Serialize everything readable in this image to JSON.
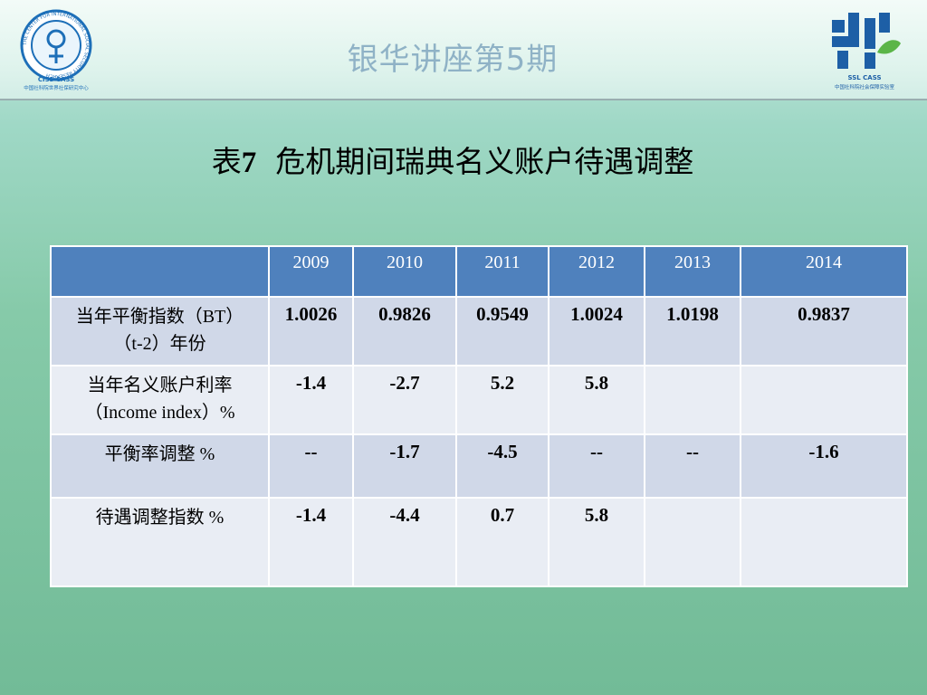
{
  "header": {
    "series_title": "银华讲座第5期",
    "left_logo": {
      "icon": "ciss-cass-emblem-icon",
      "ring_text": "THE CENTER FOR INTERNATIONAL SOCIAL SECURITY RESEARCH",
      "abbr": "CISS   CASS",
      "subtitle": "中国社科院世界社保研究中心"
    },
    "right_logo": {
      "icon": "ssl-cass-emblem-icon",
      "abbr": "SSL   CASS",
      "subtitle": "中国社科院社会保障实验室"
    }
  },
  "slide": {
    "title_prefix": "表",
    "title_number": "7",
    "title_text": "危机期间瑞典名义账户待遇调整"
  },
  "table": {
    "columns": [
      "",
      "2009",
      "2010",
      "2011",
      "2012",
      "2013",
      "2014"
    ],
    "rows": [
      {
        "label_line1": "当年平衡指数（BT）",
        "label_line2": "（t-2）年份",
        "values": [
          "1.0026",
          "0.9826",
          "0.9549",
          "1.0024",
          "1.0198",
          "0.9837"
        ]
      },
      {
        "label_line1": "当年名义账户利率",
        "label_line2": "（Income index）%",
        "values": [
          "-1.4",
          "-2.7",
          "5.2",
          "5.8",
          "",
          ""
        ]
      },
      {
        "label_line1": "平衡率调整 %",
        "label_line2": "",
        "values": [
          "--",
          "-1.7",
          "-4.5",
          "--",
          "--",
          "-1.6"
        ]
      },
      {
        "label_line1": "待遇调整指数 %",
        "label_line2": "",
        "values": [
          "-1.4",
          "-4.4",
          "0.7",
          "5.8",
          "",
          ""
        ]
      }
    ]
  },
  "colors": {
    "header_fill": "#4f81bd",
    "row_odd": "#d0d8e8",
    "row_even": "#e9edf4",
    "series_title": "#8fb2c6"
  }
}
